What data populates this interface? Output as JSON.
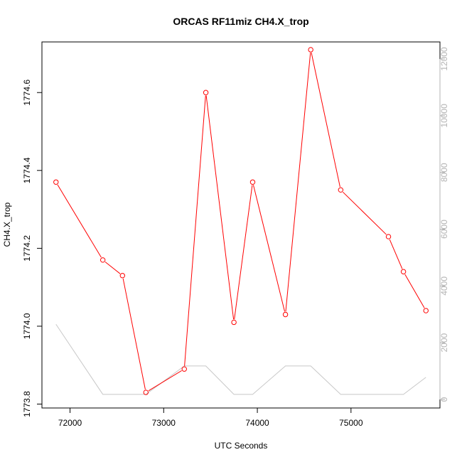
{
  "chart_data": {
    "type": "line",
    "title": "ORCAS RF11miz CH4.X_trop",
    "xlabel": "UTC Seconds",
    "ylabel": "CH4.X_trop",
    "xlim": [
      71700,
      75950
    ],
    "ylim": [
      1773.79,
      1774.73
    ],
    "y2lim": [
      -300,
      12600
    ],
    "x_ticks": [
      72000,
      73000,
      74000,
      75000
    ],
    "y_ticks": [
      1773.8,
      1774.0,
      1774.2,
      1774.4,
      1774.6
    ],
    "y2_ticks": [
      0,
      2000,
      4000,
      6000,
      8000,
      10000,
      12000
    ],
    "grid": false,
    "series": [
      {
        "axis": "left",
        "color": "#ff0000",
        "style": "line+circles",
        "x": [
          71850,
          72350,
          72560,
          72810,
          73220,
          73450,
          73750,
          73950,
          74300,
          74570,
          74890,
          75400,
          75560,
          75800
        ],
        "y": [
          1774.37,
          1774.17,
          1774.13,
          1773.83,
          1773.89,
          1774.6,
          1774.01,
          1774.37,
          1774.03,
          1774.71,
          1774.35,
          1774.23,
          1774.14,
          1774.04
        ]
      },
      {
        "axis": "right",
        "color": "#c8c8c8",
        "style": "line",
        "x": [
          71850,
          72350,
          72810,
          73220,
          73450,
          73750,
          73950,
          74300,
          74570,
          74890,
          75400,
          75560,
          75800
        ],
        "y": [
          2650,
          180,
          180,
          1180,
          1180,
          180,
          180,
          1180,
          1180,
          180,
          180,
          180,
          780
        ]
      }
    ]
  }
}
